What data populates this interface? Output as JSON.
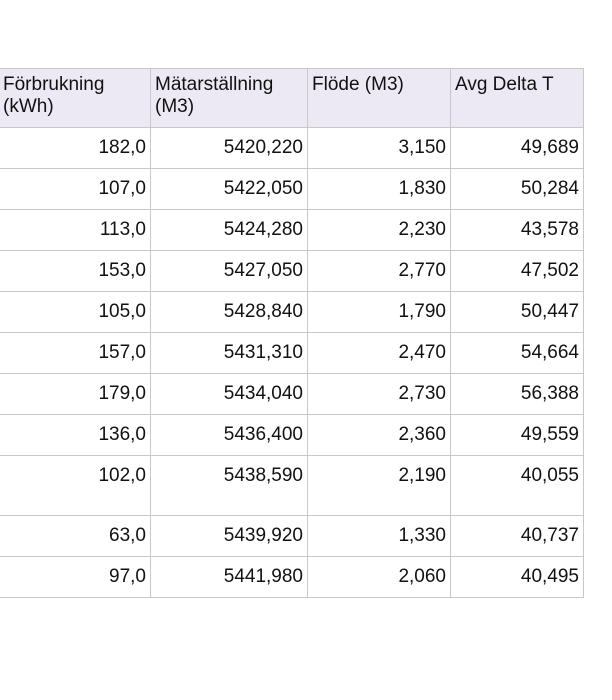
{
  "table": {
    "header": [
      "Förbrukning (kWh)",
      "Mätarställning (M3)",
      "Flöde (M3)",
      "Avg Delta T"
    ],
    "rows": [
      [
        "182,0",
        "5420,220",
        "3,150",
        "49,689"
      ],
      [
        "107,0",
        "5422,050",
        "1,830",
        "50,284"
      ],
      [
        "113,0",
        "5424,280",
        "2,230",
        "43,578"
      ],
      [
        "153,0",
        "5427,050",
        "2,770",
        "47,502"
      ],
      [
        "105,0",
        "5428,840",
        "1,790",
        "50,447"
      ],
      [
        "157,0",
        "5431,310",
        "2,470",
        "54,664"
      ],
      [
        "179,0",
        "5434,040",
        "2,730",
        "56,388"
      ],
      [
        "136,0",
        "5436,400",
        "2,360",
        "49,559"
      ],
      [
        "102,0",
        "5438,590",
        "2,190",
        "40,055"
      ],
      [
        "63,0",
        "5439,920",
        "1,330",
        "40,737"
      ],
      [
        "97,0",
        "5441,980",
        "2,060",
        "40,495"
      ]
    ]
  }
}
